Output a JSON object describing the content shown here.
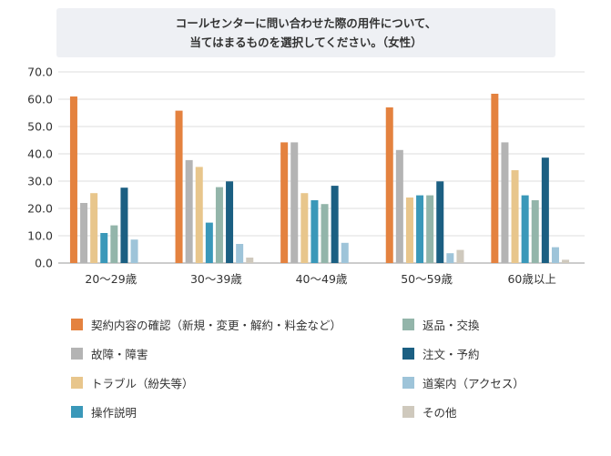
{
  "title": {
    "line1": "コールセンターに問い合わせた際の用件について、",
    "line2": "当てはまるものを選択してください。（女性）"
  },
  "chart_data": {
    "type": "bar",
    "categories": [
      "20〜29歳",
      "30〜39歳",
      "40〜49歳",
      "50〜59歳",
      "60歳以上"
    ],
    "ylim": [
      0,
      70
    ],
    "yticks": [
      "0.0",
      "10.0",
      "20.0",
      "30.0",
      "40.0",
      "50.0",
      "60.0",
      "70.0"
    ],
    "grid": true,
    "legend_position": "bottom",
    "series": [
      {
        "name": "契約内容の確認（新規・変更・解約・料金など）",
        "color": "#e4823f",
        "values": [
          61.0,
          55.8,
          44.2,
          57.0,
          62.0
        ]
      },
      {
        "name": "故障・障害",
        "color": "#b4b4b4",
        "values": [
          22.0,
          37.7,
          44.2,
          41.4,
          44.2
        ]
      },
      {
        "name": "トラブル（紛失等）",
        "color": "#e8c68c",
        "values": [
          25.6,
          35.2,
          25.6,
          24.0,
          34.0
        ]
      },
      {
        "name": "操作説明",
        "color": "#3a98b9",
        "values": [
          11.0,
          14.8,
          23.0,
          24.8,
          24.8
        ]
      },
      {
        "name": "返品・交換",
        "color": "#93b5aa",
        "values": [
          13.8,
          27.8,
          21.6,
          24.8,
          23.0
        ]
      },
      {
        "name": "注文・予約",
        "color": "#1b5f82",
        "values": [
          27.6,
          29.9,
          28.3,
          29.9,
          38.6
        ]
      },
      {
        "name": "道案内（アクセス）",
        "color": "#9ec4d9",
        "values": [
          8.6,
          7.0,
          7.4,
          3.6,
          5.8
        ]
      },
      {
        "name": "その他",
        "color": "#cfc9bd",
        "values": [
          0.0,
          2.0,
          0.0,
          4.8,
          1.2
        ]
      }
    ]
  },
  "legend_order": [
    0,
    4,
    1,
    5,
    2,
    6,
    3,
    7
  ]
}
